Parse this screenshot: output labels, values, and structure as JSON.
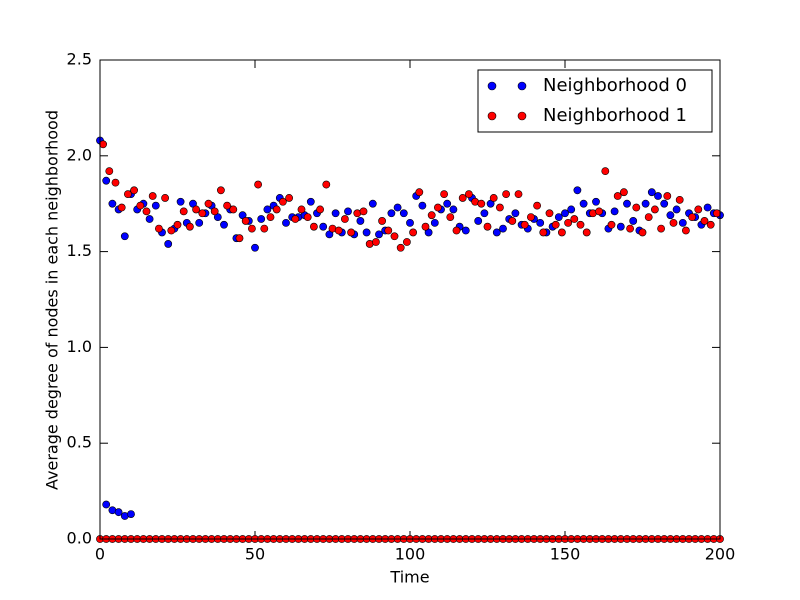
{
  "chart_data": {
    "type": "scatter",
    "xlabel": "Time",
    "ylabel": "Average degree of nodes in each neighborhood",
    "xlim": [
      0,
      200
    ],
    "xticks": [
      0,
      50,
      100,
      150,
      200
    ],
    "ylim": [
      0,
      2.5
    ],
    "yticks": [
      {
        "value": 0,
        "label": "0.0"
      },
      {
        "value": 0.5,
        "label": "0.5"
      },
      {
        "value": 1,
        "label": "1.0"
      },
      {
        "value": 1.5,
        "label": "1.5"
      },
      {
        "value": 2,
        "label": "2.0"
      },
      {
        "value": 2.5,
        "label": "2.5"
      }
    ],
    "legend": "upper right",
    "series": [
      {
        "name": "Neighborhood 0",
        "color": "#0000ff",
        "x": [
          0,
          2,
          4,
          6,
          8,
          10,
          12,
          14,
          16,
          18,
          20,
          22,
          24,
          26,
          28,
          30,
          32,
          34,
          36,
          38,
          40,
          42,
          44,
          46,
          48,
          50,
          52,
          54,
          56,
          58,
          60,
          62,
          64,
          66,
          68,
          70,
          72,
          74,
          76,
          78,
          80,
          82,
          84,
          86,
          88,
          90,
          92,
          94,
          96,
          98,
          100,
          102,
          104,
          106,
          108,
          110,
          112,
          114,
          116,
          118,
          120,
          122,
          124,
          126,
          128,
          130,
          132,
          134,
          136,
          138,
          140,
          142,
          144,
          146,
          148,
          150,
          152,
          154,
          156,
          158,
          160,
          162,
          164,
          166,
          168,
          170,
          172,
          174,
          176,
          178,
          180,
          182,
          184,
          186,
          188,
          190,
          192,
          194,
          196,
          198,
          200,
          2,
          4,
          6,
          8,
          10
        ],
        "values": [
          2.08,
          1.87,
          1.75,
          1.72,
          1.58,
          1.8,
          1.72,
          1.75,
          1.67,
          1.74,
          1.6,
          1.54,
          1.62,
          1.76,
          1.65,
          1.75,
          1.65,
          1.7,
          1.74,
          1.68,
          1.64,
          1.72,
          1.57,
          1.69,
          1.66,
          1.52,
          1.67,
          1.72,
          1.74,
          1.78,
          1.65,
          1.68,
          1.68,
          1.69,
          1.76,
          1.7,
          1.63,
          1.59,
          1.7,
          1.6,
          1.71,
          1.59,
          1.66,
          1.6,
          1.75,
          1.59,
          1.61,
          1.7,
          1.73,
          1.7,
          1.65,
          1.79,
          1.74,
          1.6,
          1.65,
          1.72,
          1.75,
          1.72,
          1.63,
          1.61,
          1.78,
          1.66,
          1.7,
          1.75,
          1.6,
          1.62,
          1.67,
          1.7,
          1.64,
          1.62,
          1.67,
          1.65,
          1.6,
          1.63,
          1.68,
          1.7,
          1.72,
          1.82,
          1.75,
          1.7,
          1.76,
          1.7,
          1.62,
          1.71,
          1.63,
          1.75,
          1.66,
          1.61,
          1.75,
          1.81,
          1.79,
          1.75,
          1.69,
          1.72,
          1.65,
          1.7,
          1.68,
          1.64,
          1.73,
          1.7,
          1.69,
          0.18,
          0.15,
          0.14,
          0.12,
          0.13
        ]
      },
      {
        "name": "Neighborhood 1",
        "color": "#ff0000",
        "x": [
          1,
          3,
          5,
          7,
          9,
          11,
          13,
          15,
          17,
          19,
          21,
          23,
          25,
          27,
          29,
          31,
          33,
          35,
          37,
          39,
          41,
          43,
          45,
          47,
          49,
          51,
          53,
          55,
          57,
          59,
          61,
          63,
          65,
          67,
          69,
          71,
          73,
          75,
          77,
          79,
          81,
          83,
          85,
          87,
          89,
          91,
          93,
          95,
          97,
          99,
          101,
          103,
          105,
          107,
          109,
          111,
          113,
          115,
          117,
          119,
          121,
          123,
          125,
          127,
          129,
          131,
          133,
          135,
          137,
          139,
          141,
          143,
          145,
          147,
          149,
          151,
          153,
          155,
          157,
          159,
          161,
          163,
          165,
          167,
          169,
          171,
          173,
          175,
          177,
          179,
          181,
          183,
          185,
          187,
          189,
          191,
          193,
          195,
          197,
          199,
          0,
          2,
          4,
          6,
          8,
          10,
          12,
          14,
          16,
          18,
          20,
          22,
          24,
          26,
          28,
          30,
          32,
          34,
          36,
          38,
          40,
          42,
          44,
          46,
          48,
          50,
          52,
          54,
          56,
          58,
          60,
          62,
          64,
          66,
          68,
          70,
          72,
          74,
          76,
          78,
          80,
          82,
          84,
          86,
          88,
          90,
          92,
          94,
          96,
          98,
          100,
          102,
          104,
          106,
          108,
          110,
          112,
          114,
          116,
          118,
          120,
          122,
          124,
          126,
          128,
          130,
          132,
          134,
          136,
          138,
          140,
          142,
          144,
          146,
          148,
          150,
          152,
          154,
          156,
          158,
          160,
          162,
          164,
          166,
          168,
          170,
          172,
          174,
          176,
          178,
          180,
          182,
          184,
          186,
          188,
          190,
          192,
          194,
          196,
          198,
          200
        ],
        "values": [
          2.06,
          1.92,
          1.86,
          1.73,
          1.8,
          1.82,
          1.74,
          1.71,
          1.79,
          1.62,
          1.78,
          1.61,
          1.64,
          1.71,
          1.63,
          1.72,
          1.7,
          1.75,
          1.71,
          1.82,
          1.74,
          1.72,
          1.57,
          1.66,
          1.62,
          1.85,
          1.62,
          1.68,
          1.72,
          1.76,
          1.78,
          1.67,
          1.72,
          1.68,
          1.63,
          1.72,
          1.85,
          1.62,
          1.61,
          1.67,
          1.6,
          1.7,
          1.71,
          1.54,
          1.55,
          1.66,
          1.61,
          1.58,
          1.52,
          1.55,
          1.6,
          1.81,
          1.63,
          1.69,
          1.73,
          1.8,
          1.68,
          1.61,
          1.78,
          1.8,
          1.76,
          1.75,
          1.63,
          1.78,
          1.73,
          1.8,
          1.66,
          1.8,
          1.64,
          1.68,
          1.74,
          1.6,
          1.7,
          1.64,
          1.6,
          1.65,
          1.67,
          1.64,
          1.6,
          1.7,
          1.71,
          1.92,
          1.64,
          1.79,
          1.81,
          1.62,
          1.73,
          1.6,
          1.68,
          1.72,
          1.62,
          1.79,
          1.65,
          1.77,
          1.61,
          1.68,
          1.72,
          1.66,
          1.64,
          1.7,
          0,
          0,
          0,
          0,
          0,
          0,
          0,
          0,
          0,
          0,
          0,
          0,
          0,
          0,
          0,
          0,
          0,
          0,
          0,
          0,
          0,
          0,
          0,
          0,
          0,
          0,
          0,
          0,
          0,
          0,
          0,
          0,
          0,
          0,
          0,
          0,
          0,
          0,
          0,
          0,
          0,
          0,
          0,
          0,
          0,
          0,
          0,
          0,
          0,
          0,
          0,
          0,
          0,
          0,
          0,
          0,
          0,
          0,
          0,
          0,
          0,
          0,
          0,
          0,
          0,
          0,
          0,
          0,
          0,
          0,
          0,
          0,
          0,
          0,
          0,
          0,
          0,
          0,
          0,
          0,
          0,
          0,
          0,
          0,
          0,
          0,
          0,
          0,
          0,
          0,
          0,
          0,
          0,
          0,
          0,
          0,
          0,
          0,
          0,
          0,
          0
        ]
      }
    ]
  }
}
